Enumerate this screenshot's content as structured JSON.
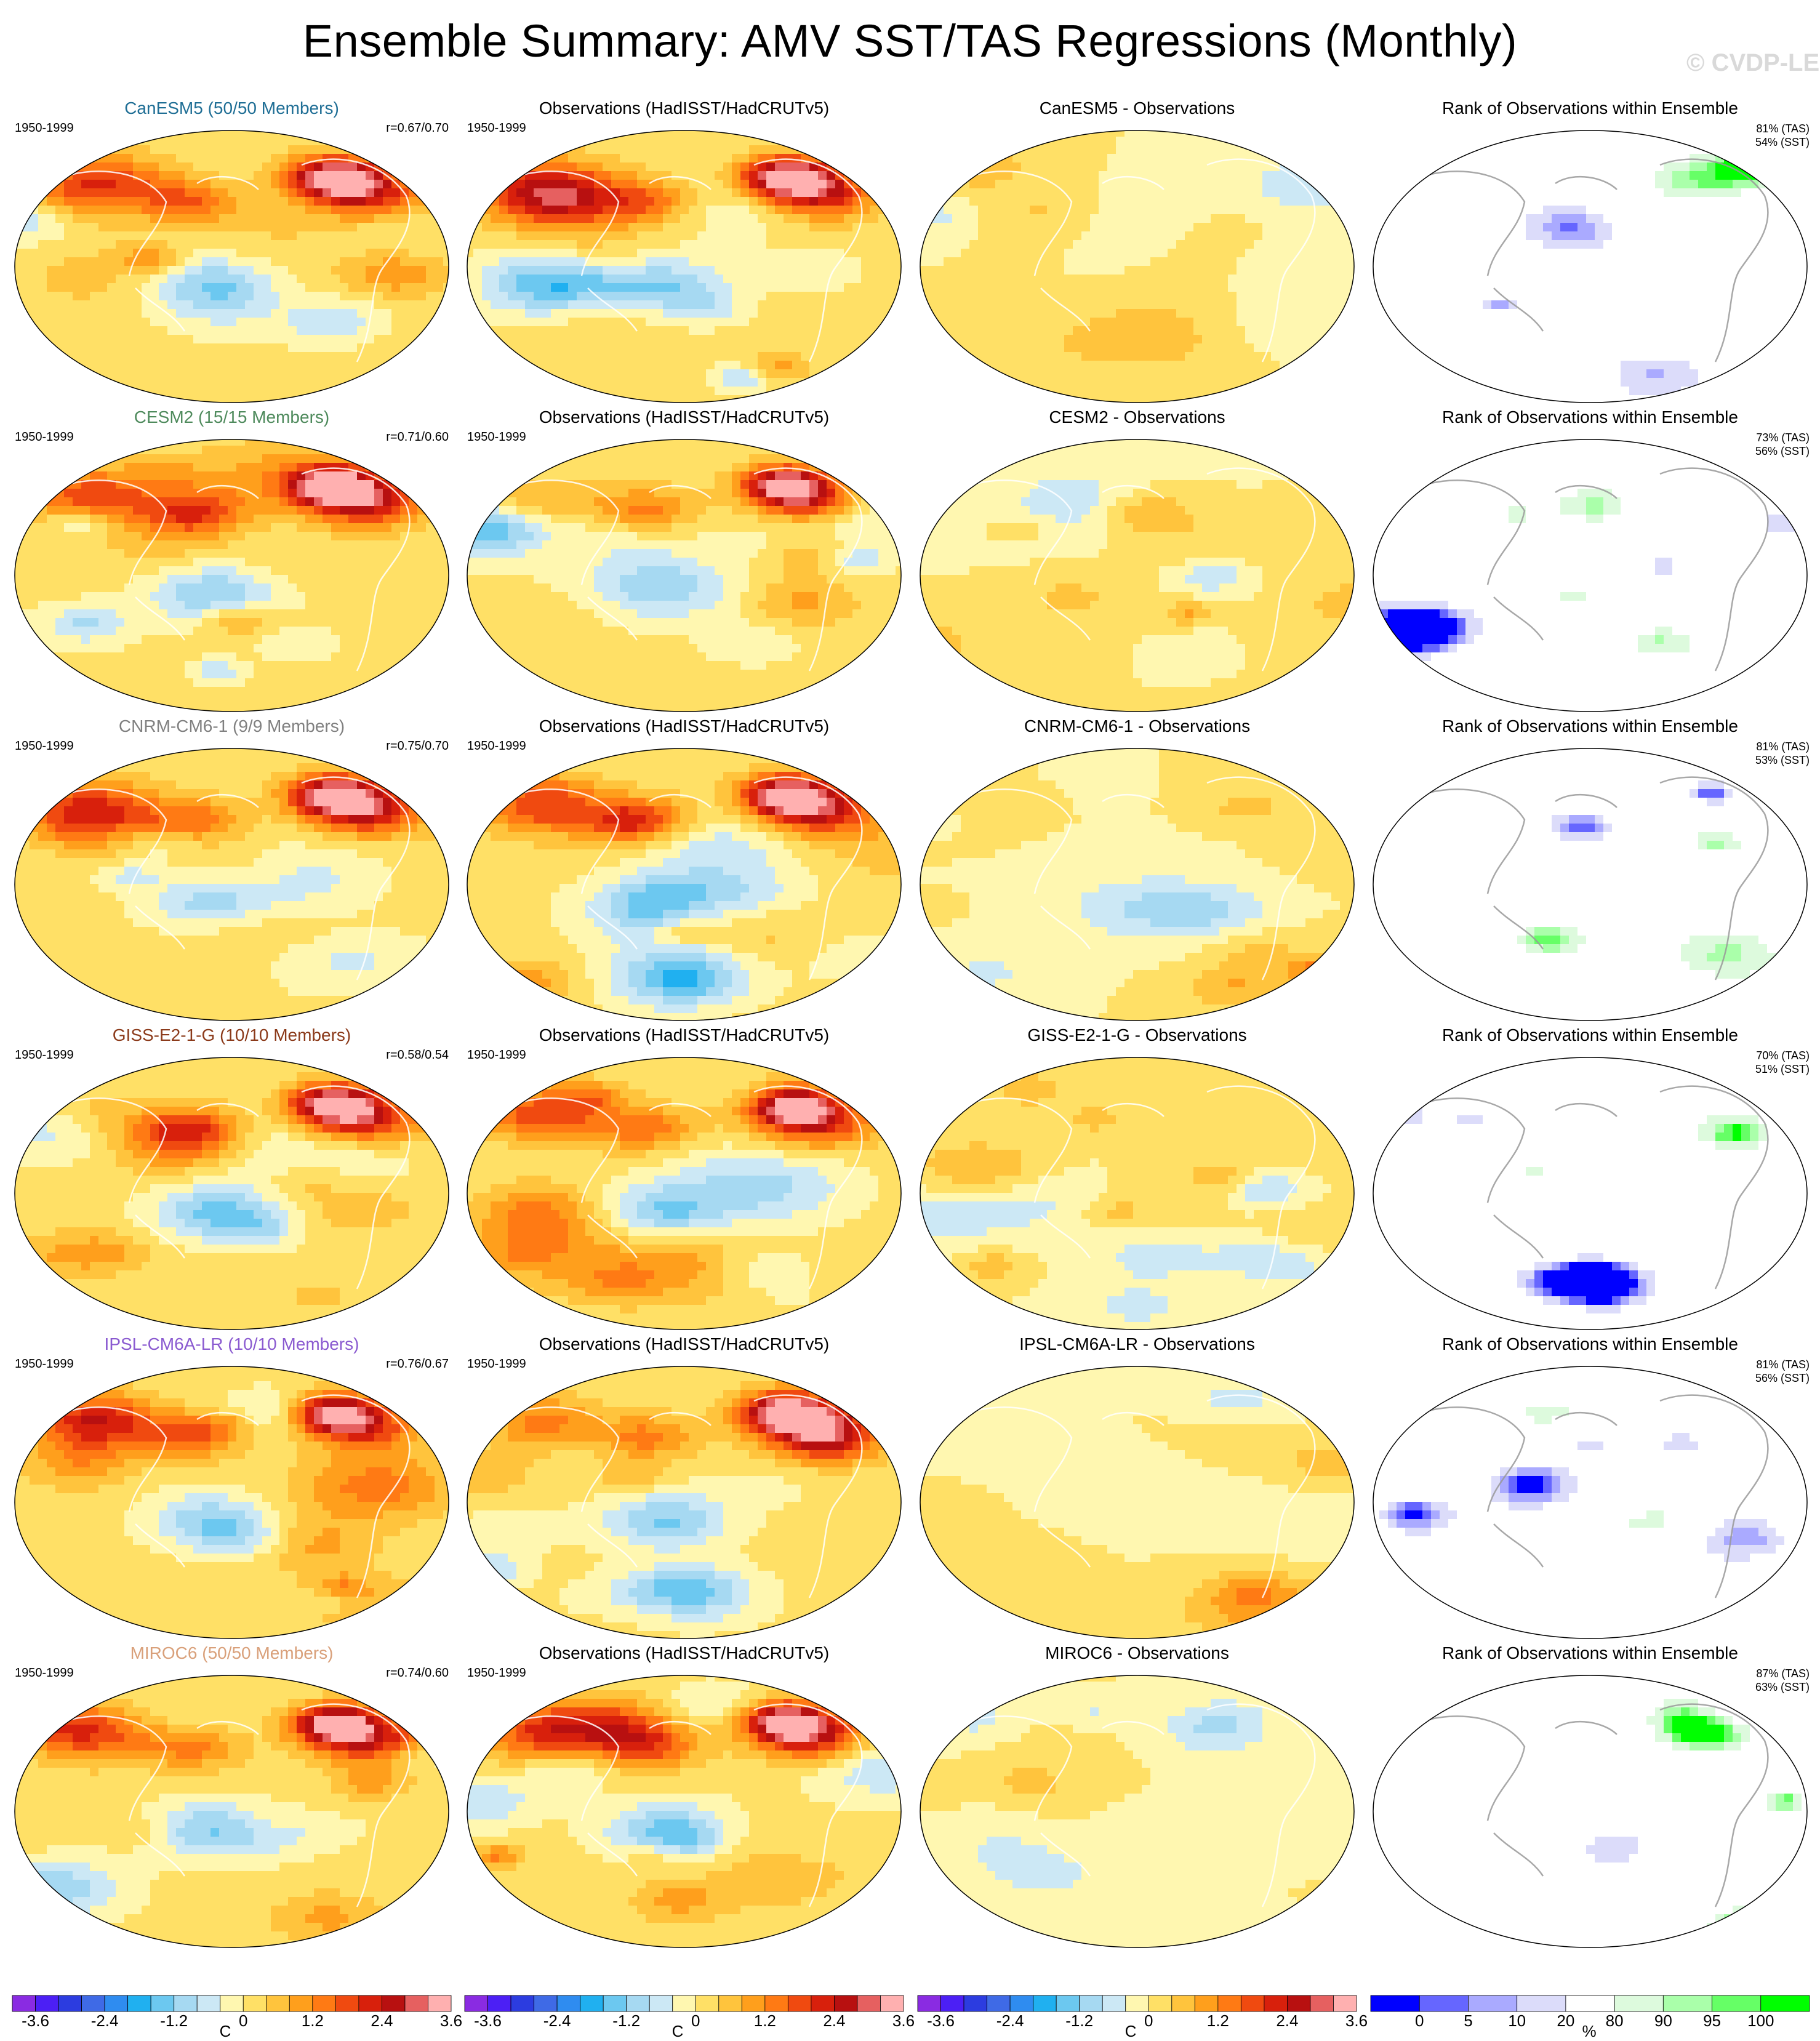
{
  "title": "Ensemble Summary: AMV SST/TAS Regressions (Monthly)",
  "watermark": "© CVDP-LE",
  "chart_data": {
    "type": "heatmap",
    "title": "Ensemble Summary: AMV SST/TAS Regressions (Monthly)",
    "projection": "global equal-area (Robinson-like), Pacific-centered",
    "grid": false,
    "rows": [
      {
        "model": "CanESM5",
        "model_title": "CanESM5 (50/50 Members)",
        "title_color": "#1f6e95",
        "period": "1950-1999",
        "pattern_corr": "r=0.67/0.70",
        "obs_title": "Observations (HadISST/HadCRUTv5)",
        "obs_period": "1950-1999",
        "diff_title": "CanESM5 - Observations",
        "rank_title": "Rank of Observations within Ensemble",
        "rank_tas": "81% (TAS)",
        "rank_sst": "54% (SST)"
      },
      {
        "model": "CESM2",
        "model_title": "CESM2 (15/15 Members)",
        "title_color": "#4e8a5c",
        "period": "1950-1999",
        "pattern_corr": "r=0.71/0.60",
        "obs_title": "Observations (HadISST/HadCRUTv5)",
        "obs_period": "1950-1999",
        "diff_title": "CESM2 - Observations",
        "rank_title": "Rank of Observations within Ensemble",
        "rank_tas": "73% (TAS)",
        "rank_sst": "56% (SST)"
      },
      {
        "model": "CNRM-CM6-1",
        "model_title": "CNRM-CM6-1 (9/9 Members)",
        "title_color": "#808080",
        "period": "1950-1999",
        "pattern_corr": "r=0.75/0.70",
        "obs_title": "Observations (HadISST/HadCRUTv5)",
        "obs_period": "1950-1999",
        "diff_title": "CNRM-CM6-1 - Observations",
        "rank_title": "Rank of Observations within Ensemble",
        "rank_tas": "81% (TAS)",
        "rank_sst": "53% (SST)"
      },
      {
        "model": "GISS-E2-1-G",
        "model_title": "GISS-E2-1-G (10/10 Members)",
        "title_color": "#8b3a1a",
        "period": "1950-1999",
        "pattern_corr": "r=0.58/0.54",
        "obs_title": "Observations (HadISST/HadCRUTv5)",
        "obs_period": "1950-1999",
        "diff_title": "GISS-E2-1-G - Observations",
        "rank_title": "Rank of Observations within Ensemble",
        "rank_tas": "70% (TAS)",
        "rank_sst": "51% (SST)"
      },
      {
        "model": "IPSL-CM6A-LR",
        "model_title": "IPSL-CM6A-LR (10/10 Members)",
        "title_color": "#8a5ad0",
        "period": "1950-1999",
        "pattern_corr": "r=0.76/0.67",
        "obs_title": "Observations (HadISST/HadCRUTv5)",
        "obs_period": "1950-1999",
        "diff_title": "IPSL-CM6A-LR - Observations",
        "rank_title": "Rank of Observations within Ensemble",
        "rank_tas": "81% (TAS)",
        "rank_sst": "56% (SST)"
      },
      {
        "model": "MIROC6",
        "model_title": "MIROC6 (50/50 Members)",
        "title_color": "#d9a07a",
        "period": "1950-1999",
        "pattern_corr": "r=0.74/0.60",
        "obs_title": "Observations (HadISST/HadCRUTv5)",
        "obs_period": "1950-1999",
        "diff_title": "MIROC6 - Observations",
        "rank_title": "Rank of Observations within Ensemble",
        "rank_tas": "87% (TAS)",
        "rank_sst": "63% (SST)"
      }
    ],
    "temp_colorbar": {
      "unit": "C",
      "levels": [
        -3.6,
        -3.2,
        -2.8,
        -2.4,
        -2.0,
        -1.6,
        -1.2,
        -0.8,
        -0.4,
        0,
        0.4,
        0.8,
        1.2,
        1.6,
        2.0,
        2.4,
        2.8,
        3.2,
        3.6
      ],
      "tick_labels": [
        "-3.6",
        "-2.4",
        "-1.2",
        "0",
        "1.2",
        "2.4",
        "3.6"
      ],
      "colors": [
        "#8a2be2",
        "#4c1ff5",
        "#2c3ce0",
        "#3f6ae6",
        "#2f8cf0",
        "#20b0f0",
        "#6cc8f0",
        "#a6d9f2",
        "#cce8f5",
        "#fff7b0",
        "#ffe066",
        "#ffc43d",
        "#ff9f1c",
        "#ff7a14",
        "#f04a10",
        "#d8200c",
        "#b81010",
        "#e66060",
        "#ffb0b0"
      ]
    },
    "rank_colorbar": {
      "unit": "%",
      "levels": [
        0,
        5,
        10,
        20,
        80,
        90,
        95,
        100
      ],
      "tick_labels": [
        "0",
        "5",
        "10",
        "20",
        "80",
        "90",
        "95",
        "100"
      ],
      "colors": [
        "#0000ff",
        "#6666ff",
        "#aaaaff",
        "#dcdcfa",
        "#ffffff",
        "#ddfadd",
        "#aaffaa",
        "#66ff66",
        "#00ff00"
      ]
    }
  }
}
